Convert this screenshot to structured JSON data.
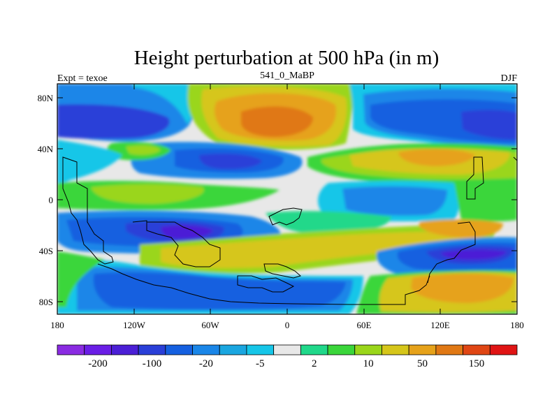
{
  "title": "Height perturbation at 500 hPa (in m)",
  "subtitle_left": "Expt = texoe",
  "subtitle_center": "541_0_MaBP",
  "subtitle_right": "DJF",
  "lat_ticks": [
    "80N",
    "40N",
    "0",
    "40S",
    "80S"
  ],
  "lon_ticks": [
    "180",
    "120W",
    "60W",
    "0",
    "60E",
    "120E",
    "180"
  ],
  "colorbar": {
    "colors": [
      "#8a2be2",
      "#6a1ee6",
      "#4b1fd6",
      "#2a3fd8",
      "#1560e0",
      "#1a86e8",
      "#1aa6e0",
      "#16c6e8",
      "#e8e8e8",
      "#20d88a",
      "#3ad63a",
      "#9ad61a",
      "#d6c61a",
      "#e6a21a",
      "#e07814",
      "#e04614",
      "#e01414"
    ],
    "labels": [
      "-200",
      "-100",
      "-20",
      "-5",
      "2",
      "10",
      "50",
      "150"
    ],
    "label_bounds": [
      1,
      3,
      5,
      7,
      9,
      11,
      13,
      15
    ]
  },
  "map_colors": {
    "neutral": "#e8e8e8",
    "deep_blue": "#2a3fd8",
    "blue": "#1560e0",
    "mid_blue": "#1a86e8",
    "cyan": "#16c6e8",
    "teal": "#20d88a",
    "green": "#3ad63a",
    "yellow_green": "#9ad61a",
    "yellow": "#d6c61a",
    "orange": "#e6a21a",
    "dark_orange": "#e07814",
    "violet": "#4b1fd6"
  }
}
